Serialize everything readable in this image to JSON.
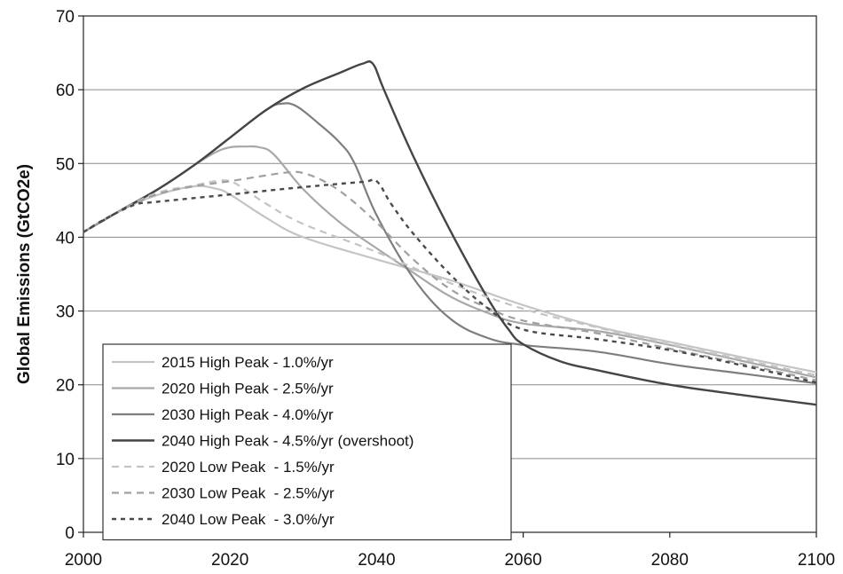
{
  "chart_data": {
    "type": "line",
    "title": "",
    "xlabel": "",
    "ylabel": "Global Emissions (GtCO2e)",
    "xlim": [
      2000,
      2100
    ],
    "ylim": [
      0,
      70
    ],
    "x_ticks": [
      2000,
      2020,
      2040,
      2060,
      2080,
      2100
    ],
    "y_ticks": [
      0,
      10,
      20,
      30,
      40,
      50,
      60,
      70
    ],
    "grid": "horizontal",
    "legend_position": "bottom-left",
    "series": [
      {
        "name": "2015 High Peak - 1.0%/yr",
        "color": "#c4c4c4",
        "dash": "solid",
        "width": 2.2,
        "points": [
          [
            2000,
            40.7
          ],
          [
            2005,
            43.6
          ],
          [
            2010,
            45.7
          ],
          [
            2015,
            46.9
          ],
          [
            2018,
            46.6
          ],
          [
            2020,
            45.8
          ],
          [
            2025,
            42.6
          ],
          [
            2030,
            40.0
          ],
          [
            2040,
            37.0
          ],
          [
            2050,
            34.2
          ],
          [
            2060,
            30.8
          ],
          [
            2070,
            27.9
          ],
          [
            2080,
            25.8
          ],
          [
            2090,
            23.7
          ],
          [
            2100,
            21.7
          ]
        ]
      },
      {
        "name": "2020 High Peak - 2.5%/yr",
        "color": "#a8a8a8",
        "dash": "solid",
        "width": 2.2,
        "points": [
          [
            2000,
            40.7
          ],
          [
            2005,
            43.6
          ],
          [
            2010,
            46.4
          ],
          [
            2015,
            49.7
          ],
          [
            2018,
            51.5
          ],
          [
            2020,
            52.2
          ],
          [
            2022,
            52.3
          ],
          [
            2024,
            52.2
          ],
          [
            2026,
            51.2
          ],
          [
            2030,
            46.5
          ],
          [
            2035,
            42.0
          ],
          [
            2040,
            38.5
          ],
          [
            2045,
            35.2
          ],
          [
            2050,
            32.0
          ],
          [
            2055,
            29.8
          ],
          [
            2060,
            28.3
          ],
          [
            2070,
            27.3
          ],
          [
            2080,
            25.4
          ],
          [
            2090,
            23.2
          ],
          [
            2100,
            21.0
          ]
        ]
      },
      {
        "name": "2030 High Peak - 4.0%/yr",
        "color": "#7e7e7e",
        "dash": "solid",
        "width": 2.2,
        "points": [
          [
            2000,
            40.7
          ],
          [
            2005,
            43.6
          ],
          [
            2010,
            46.4
          ],
          [
            2015,
            49.7
          ],
          [
            2020,
            53.5
          ],
          [
            2025,
            57.3
          ],
          [
            2027,
            58.1
          ],
          [
            2029,
            57.8
          ],
          [
            2032,
            55.5
          ],
          [
            2035,
            52.8
          ],
          [
            2037,
            50.0
          ],
          [
            2040,
            43.0
          ],
          [
            2045,
            34.5
          ],
          [
            2050,
            29.0
          ],
          [
            2055,
            26.4
          ],
          [
            2060,
            25.4
          ],
          [
            2070,
            24.5
          ],
          [
            2080,
            22.8
          ],
          [
            2090,
            21.5
          ],
          [
            2100,
            20.2
          ]
        ]
      },
      {
        "name": "2040 High Peak - 4.5%/yr (overshoot)",
        "color": "#454545",
        "dash": "solid",
        "width": 2.4,
        "points": [
          [
            2000,
            40.7
          ],
          [
            2005,
            43.6
          ],
          [
            2010,
            46.4
          ],
          [
            2015,
            49.7
          ],
          [
            2020,
            53.5
          ],
          [
            2025,
            57.3
          ],
          [
            2030,
            60.2
          ],
          [
            2035,
            62.3
          ],
          [
            2038,
            63.5
          ],
          [
            2039.5,
            63.5
          ],
          [
            2041,
            60.0
          ],
          [
            2045,
            51.0
          ],
          [
            2050,
            41.0
          ],
          [
            2055,
            32.0
          ],
          [
            2058,
            27.5
          ],
          [
            2060,
            25.5
          ],
          [
            2065,
            23.2
          ],
          [
            2070,
            22.0
          ],
          [
            2080,
            20.0
          ],
          [
            2090,
            18.6
          ],
          [
            2100,
            17.3
          ]
        ]
      },
      {
        "name": "2020 Low Peak  - 1.5%/yr",
        "color": "#c4c4c4",
        "dash": "dashed",
        "width": 2.2,
        "points": [
          [
            2000,
            40.7
          ],
          [
            2005,
            43.6
          ],
          [
            2010,
            46.0
          ],
          [
            2015,
            47.0
          ],
          [
            2018,
            47.6
          ],
          [
            2020,
            47.6
          ],
          [
            2022,
            46.5
          ],
          [
            2025,
            44.5
          ],
          [
            2030,
            41.8
          ],
          [
            2040,
            38.0
          ],
          [
            2050,
            33.8
          ],
          [
            2060,
            30.3
          ],
          [
            2070,
            27.8
          ],
          [
            2080,
            25.5
          ],
          [
            2090,
            23.4
          ],
          [
            2100,
            21.3
          ]
        ]
      },
      {
        "name": "2030 Low Peak  - 2.5%/yr",
        "color": "#a0a0a0",
        "dash": "dashed",
        "width": 2.2,
        "points": [
          [
            2000,
            40.7
          ],
          [
            2005,
            43.6
          ],
          [
            2010,
            45.8
          ],
          [
            2015,
            46.9
          ],
          [
            2020,
            47.6
          ],
          [
            2025,
            48.4
          ],
          [
            2028,
            48.8
          ],
          [
            2030,
            48.7
          ],
          [
            2033,
            47.5
          ],
          [
            2036,
            45.5
          ],
          [
            2040,
            42.0
          ],
          [
            2045,
            37.0
          ],
          [
            2050,
            33.0
          ],
          [
            2055,
            30.5
          ],
          [
            2060,
            28.7
          ],
          [
            2070,
            27.0
          ],
          [
            2080,
            24.9
          ],
          [
            2090,
            22.8
          ],
          [
            2100,
            20.6
          ]
        ]
      },
      {
        "name": "2040 Low Peak  - 3.0%/yr",
        "color": "#4a4a4a",
        "dash": "dotted",
        "width": 2.4,
        "points": [
          [
            2000,
            40.7
          ],
          [
            2003,
            42.5
          ],
          [
            2007,
            44.4
          ],
          [
            2010,
            44.8
          ],
          [
            2020,
            45.8
          ],
          [
            2030,
            46.8
          ],
          [
            2038,
            47.5
          ],
          [
            2040,
            47.6
          ],
          [
            2042,
            44.5
          ],
          [
            2045,
            40.5
          ],
          [
            2050,
            35.0
          ],
          [
            2055,
            30.5
          ],
          [
            2060,
            27.5
          ],
          [
            2070,
            26.2
          ],
          [
            2080,
            24.7
          ],
          [
            2090,
            22.6
          ],
          [
            2100,
            20.3
          ]
        ]
      }
    ]
  }
}
